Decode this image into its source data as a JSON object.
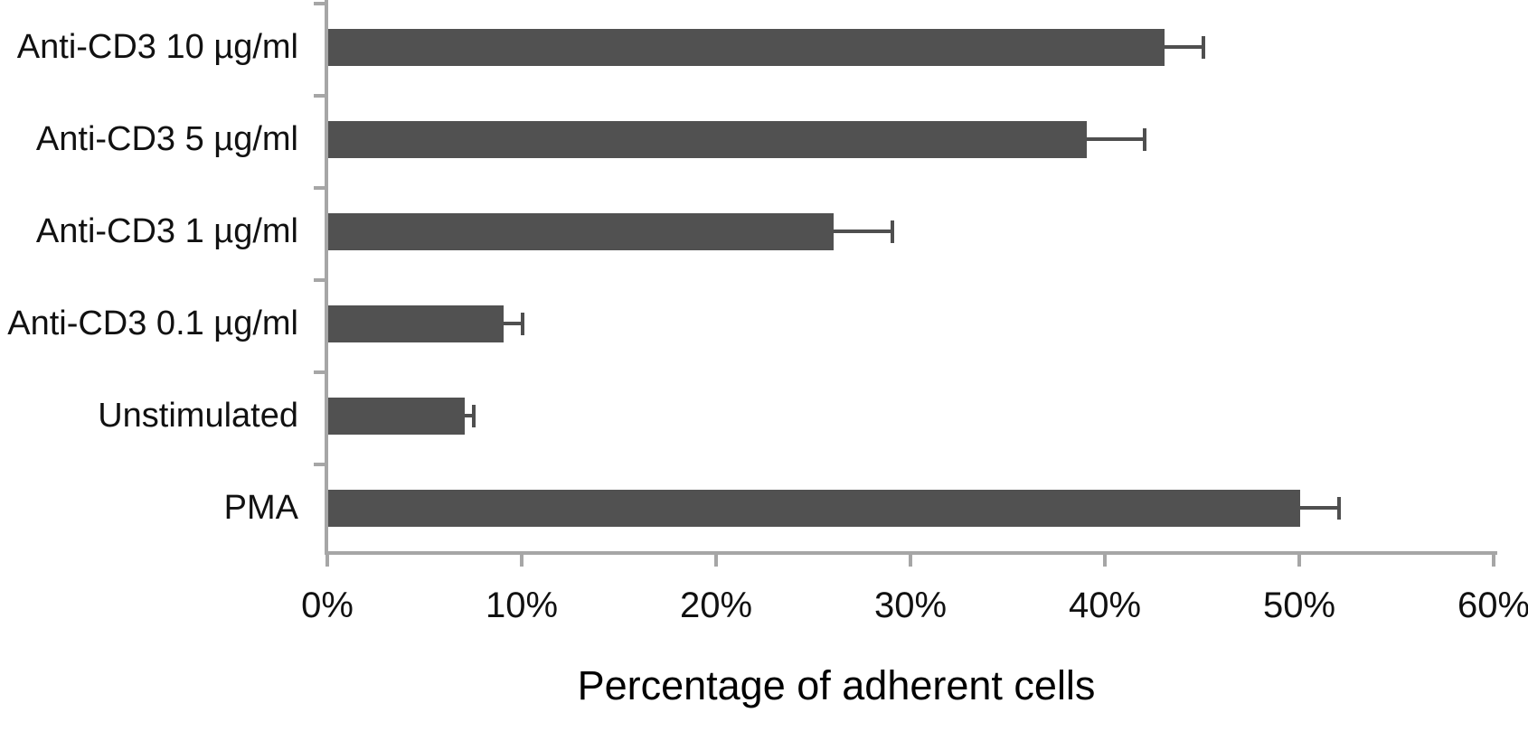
{
  "chart_data": {
    "type": "bar",
    "orientation": "horizontal",
    "xlabel": "Percentage of adherent cells",
    "categories": [
      "Anti-CD3 10 µg/ml",
      "Anti-CD3 5 µg/ml",
      "Anti-CD3 1 µg/ml",
      "Anti-CD3 0.1 µg/ml",
      "Unstimulated",
      "PMA"
    ],
    "values": [
      43,
      39,
      26,
      9,
      7,
      50
    ],
    "errors_plus": [
      2,
      3,
      3,
      1,
      0.5,
      2
    ],
    "x_ticks": [
      "0%",
      "10%",
      "20%",
      "30%",
      "40%",
      "50%",
      "60%"
    ],
    "xlim": [
      0,
      60
    ],
    "grid": "off",
    "legend": "none",
    "colors": {
      "bar": "#515151",
      "error": "#4f4f4f",
      "axis": "#a6a6a6",
      "text": "#000000",
      "background": "#ffffff"
    }
  }
}
